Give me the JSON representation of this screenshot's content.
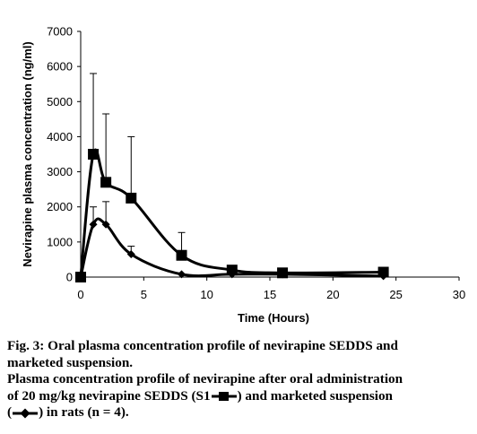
{
  "chart_data": {
    "type": "line",
    "title": "",
    "xlabel": "Time (Hours)",
    "ylabel": "Nevirapine plasma concentration (ng/ml)",
    "xlim": [
      0,
      30
    ],
    "ylim": [
      0,
      7000
    ],
    "x_ticks": [
      "0",
      "5",
      "10",
      "15",
      "20",
      "25",
      "30"
    ],
    "y_ticks": [
      "0",
      "1000",
      "2000",
      "3000",
      "4000",
      "5000",
      "6000",
      "7000"
    ],
    "grid": false,
    "series": [
      {
        "name": "SEDDS (S1)",
        "marker": "square",
        "points": [
          {
            "x": 0,
            "y": 0,
            "err": 0
          },
          {
            "x": 1,
            "y": 3500,
            "err": 2300
          },
          {
            "x": 2,
            "y": 2700,
            "err": 1950
          },
          {
            "x": 4,
            "y": 2250,
            "err": 1750
          },
          {
            "x": 8,
            "y": 620,
            "err": 650
          },
          {
            "x": 12,
            "y": 200,
            "err": 0
          },
          {
            "x": 16,
            "y": 120,
            "err": 0
          },
          {
            "x": 24,
            "y": 140,
            "err": 0
          }
        ]
      },
      {
        "name": "marketed suspension",
        "marker": "diamond",
        "points": [
          {
            "x": 0,
            "y": 0,
            "err": 0
          },
          {
            "x": 1,
            "y": 1500,
            "err": 500
          },
          {
            "x": 2,
            "y": 1500,
            "err": 650
          },
          {
            "x": 4,
            "y": 650,
            "err": 230
          },
          {
            "x": 8,
            "y": 80,
            "err": 0
          },
          {
            "x": 12,
            "y": 80,
            "err": 0
          },
          {
            "x": 16,
            "y": 80,
            "err": 0
          },
          {
            "x": 24,
            "y": 30,
            "err": 0
          }
        ]
      }
    ]
  },
  "caption": {
    "line1": "Fig. 3: Oral plasma concentration profile of nevirapine SEDDS and",
    "line2": "marketed suspension.",
    "line3": "Plasma concentration profile of nevirapine after oral administration",
    "line4_a": "of 20 mg/kg nevirapine SEDDS (S1",
    "line4_b": ") and marketed suspension",
    "line5_a": "(",
    "line5_b": ") in rats (n = 4)."
  }
}
